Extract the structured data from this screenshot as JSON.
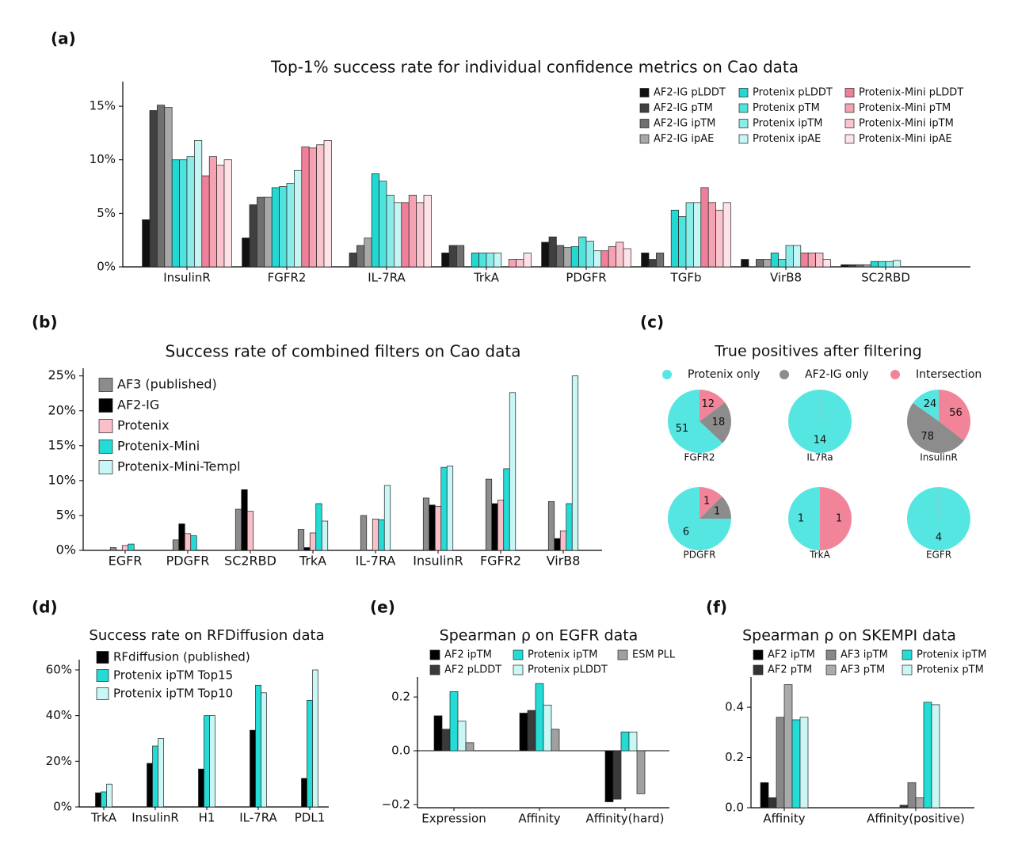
{
  "chart_data": [
    {
      "panel": "(a)",
      "type": "bar",
      "title": "Top-1% success rate for individual confidence metrics on Cao data",
      "categories": [
        "InsulinR",
        "FGFR2",
        "IL-7RA",
        "TrkA",
        "PDGFR",
        "TGFb",
        "VirB8",
        "SC2RBD"
      ],
      "ylim": [
        0,
        17.3
      ],
      "yticks": [
        {
          "value": 0,
          "label": "0%"
        },
        {
          "value": 5,
          "label": "5%"
        },
        {
          "value": 10,
          "label": "10%"
        },
        {
          "value": 15,
          "label": "15%"
        }
      ],
      "series": [
        {
          "name": "AF2-IG pLDDT",
          "color": "#111111",
          "values": [
            4.4,
            2.7,
            0,
            1.3,
            2.3,
            1.3,
            0.7,
            0.2
          ]
        },
        {
          "name": "AF2-IG pTM",
          "color": "#404040",
          "values": [
            14.6,
            5.8,
            1.3,
            2.0,
            2.8,
            0.7,
            0,
            0.2
          ]
        },
        {
          "name": "AF2-IG ipTM",
          "color": "#707070",
          "values": [
            15.1,
            6.5,
            2.0,
            2.0,
            2.0,
            1.3,
            0.7,
            0.2
          ]
        },
        {
          "name": "AF2-IG ipAE",
          "color": "#a8a8a8",
          "values": [
            14.9,
            6.5,
            2.7,
            0,
            1.8,
            0,
            0.7,
            0.2
          ]
        },
        {
          "name": "Protenix pLDDT",
          "color": "#22d8d2",
          "values": [
            10.0,
            7.4,
            8.7,
            1.3,
            1.9,
            5.3,
            1.3,
            0.5
          ]
        },
        {
          "name": "Protenix pTM",
          "color": "#4fe3de",
          "values": [
            10.0,
            7.5,
            8.0,
            1.3,
            2.8,
            4.7,
            0.7,
            0.5
          ]
        },
        {
          "name": "Protenix ipTM",
          "color": "#8becea",
          "values": [
            10.3,
            7.8,
            6.7,
            1.3,
            2.4,
            6.0,
            2.0,
            0.5
          ]
        },
        {
          "name": "Protenix ipAE",
          "color": "#c6f6f4",
          "values": [
            11.8,
            9.0,
            6.0,
            1.3,
            1.5,
            6.0,
            2.0,
            0.6
          ]
        },
        {
          "name": "Protenix-Mini pLDDT",
          "color": "#f0809a",
          "values": [
            8.5,
            11.2,
            6.0,
            0,
            1.5,
            7.4,
            1.3,
            0
          ]
        },
        {
          "name": "Protenix-Mini pTM",
          "color": "#f5a3b3",
          "values": [
            10.3,
            11.1,
            6.7,
            0.7,
            1.9,
            6.0,
            1.3,
            0
          ]
        },
        {
          "name": "Protenix-Mini ipTM",
          "color": "#f9c4ce",
          "values": [
            9.5,
            11.4,
            6.0,
            0.7,
            2.3,
            5.3,
            1.3,
            0
          ]
        },
        {
          "name": "Protenix-Mini ipAE",
          "color": "#fde3e8",
          "values": [
            10.0,
            11.8,
            6.7,
            1.3,
            1.7,
            6.0,
            0.7,
            0
          ]
        }
      ]
    },
    {
      "panel": "(b)",
      "type": "bar",
      "title": "Success rate of combined filters on Cao data",
      "categories": [
        "EGFR",
        "PDGFR",
        "SC2RBD",
        "TrkA",
        "IL-7RA",
        "InsulinR",
        "FGFR2",
        "VirB8"
      ],
      "ylim": [
        0,
        26.1
      ],
      "yticks": [
        {
          "value": 0,
          "label": "0%"
        },
        {
          "value": 5,
          "label": "5%"
        },
        {
          "value": 10,
          "label": "10%"
        },
        {
          "value": 15,
          "label": "15%"
        },
        {
          "value": 20,
          "label": "20%"
        },
        {
          "value": 25,
          "label": "25%"
        }
      ],
      "series": [
        {
          "name": "AF3 (published)",
          "color": "#8c8c8c",
          "values": [
            0.4,
            1.5,
            5.9,
            3.0,
            5.0,
            7.5,
            10.2,
            7.0
          ]
        },
        {
          "name": "AF2-IG",
          "color": "#000000",
          "values": [
            0,
            3.8,
            8.7,
            0.4,
            0,
            6.5,
            6.7,
            1.7
          ]
        },
        {
          "name": "Protenix",
          "color": "#f9c0ca",
          "values": [
            0.7,
            2.4,
            5.6,
            2.5,
            4.5,
            6.3,
            7.2,
            2.8
          ]
        },
        {
          "name": "Protenix-Mini",
          "color": "#23dcd6",
          "values": [
            0.9,
            2.1,
            0,
            6.7,
            4.4,
            11.9,
            11.7,
            6.7
          ]
        },
        {
          "name": "Protenix-Mini-Templ",
          "color": "#c8f7f5",
          "values": [
            0,
            0,
            0,
            4.2,
            9.3,
            12.1,
            22.6,
            25.0
          ]
        }
      ]
    },
    {
      "panel": "(c)",
      "type": "pie",
      "title": "True positives after filtering",
      "labels": [
        "Protenix only",
        "AF2-IG only",
        "Intersection"
      ],
      "colors": [
        "#55e6e2",
        "#8c8c8c",
        "#f2849a"
      ],
      "pies": [
        {
          "name": "FGFR2",
          "values": [
            51,
            18,
            12
          ]
        },
        {
          "name": "IL7Ra",
          "values": [
            14,
            0,
            0
          ]
        },
        {
          "name": "InsulinR",
          "values": [
            24,
            78,
            56
          ]
        },
        {
          "name": "PDGFR",
          "values": [
            6,
            1,
            1
          ]
        },
        {
          "name": "TrkA",
          "values": [
            1,
            0,
            1
          ]
        },
        {
          "name": "EGFR",
          "values": [
            4,
            0,
            0
          ]
        }
      ]
    },
    {
      "panel": "(d)",
      "type": "bar",
      "title": "Success rate on RFDiffusion data",
      "categories": [
        "TrkA",
        "InsulinR",
        "H1",
        "IL-7RA",
        "PDL1"
      ],
      "ylim": [
        0,
        64.5
      ],
      "yticks": [
        {
          "value": 0,
          "label": "0%"
        },
        {
          "value": 20,
          "label": "20%"
        },
        {
          "value": 40,
          "label": "40%"
        },
        {
          "value": 60,
          "label": "60%"
        }
      ],
      "series": [
        {
          "name": "RFdiffusion (published)",
          "color": "#000000",
          "values": [
            6.2,
            19.1,
            16.6,
            33.6,
            12.5
          ]
        },
        {
          "name": "Protenix ipTM Top15",
          "color": "#23dcd6",
          "values": [
            6.6,
            26.7,
            40,
            53.3,
            46.7
          ]
        },
        {
          "name": "Protenix ipTM Top10",
          "color": "#c8f7f5",
          "values": [
            10,
            30,
            40,
            50,
            60
          ]
        }
      ]
    },
    {
      "panel": "(e)",
      "type": "bar",
      "title": "Spearman ρ on EGFR data",
      "categories": [
        "Expression",
        "Affinity",
        "Affinity(hard)"
      ],
      "ylim": [
        -0.212,
        0.274
      ],
      "yticks": [
        {
          "value": -0.2,
          "label": "−0.2"
        },
        {
          "value": 0,
          "label": "0.0"
        },
        0.2
      ],
      "series": [
        {
          "name": "AF2 ipTM",
          "color": "#000000",
          "values": [
            0.13,
            0.14,
            -0.19
          ]
        },
        {
          "name": "AF2 pLDDT",
          "color": "#3a3a3a",
          "values": [
            0.08,
            0.15,
            -0.18
          ]
        },
        {
          "name": "Protenix ipTM",
          "color": "#23dcd6",
          "values": [
            0.22,
            0.25,
            0.07
          ]
        },
        {
          "name": "Protenix pLDDT",
          "color": "#c8f7f5",
          "values": [
            0.11,
            0.17,
            0.07
          ]
        },
        {
          "name": "ESM PLL",
          "color": "#a0a0a0",
          "values": [
            0.03,
            0.08,
            -0.16
          ]
        }
      ]
    },
    {
      "panel": "(f)",
      "type": "bar",
      "title": "Spearman ρ on SKEMPI data",
      "categories": [
        "Affinity",
        "Affinity(positive)"
      ],
      "ylim": [
        0,
        0.52
      ],
      "yticks": [
        {
          "value": 0,
          "label": "0.0"
        },
        0.2,
        0.4
      ],
      "series": [
        {
          "name": "AF2 ipTM",
          "color": "#000000",
          "values": [
            0.1,
            0
          ]
        },
        {
          "name": "AF2 pTM",
          "color": "#333333",
          "values": [
            0.04,
            0.01
          ]
        },
        {
          "name": "AF3 ipTM",
          "color": "#888888",
          "values": [
            0.36,
            0.1
          ]
        },
        {
          "name": "AF3 pTM",
          "color": "#aaaaaa",
          "values": [
            0.49,
            0.04
          ]
        },
        {
          "name": "Protenix ipTM",
          "color": "#23dcd6",
          "values": [
            0.35,
            0.42
          ]
        },
        {
          "name": "Protenix pTM",
          "color": "#c8f7f5",
          "values": [
            0.36,
            0.41
          ]
        }
      ]
    }
  ]
}
